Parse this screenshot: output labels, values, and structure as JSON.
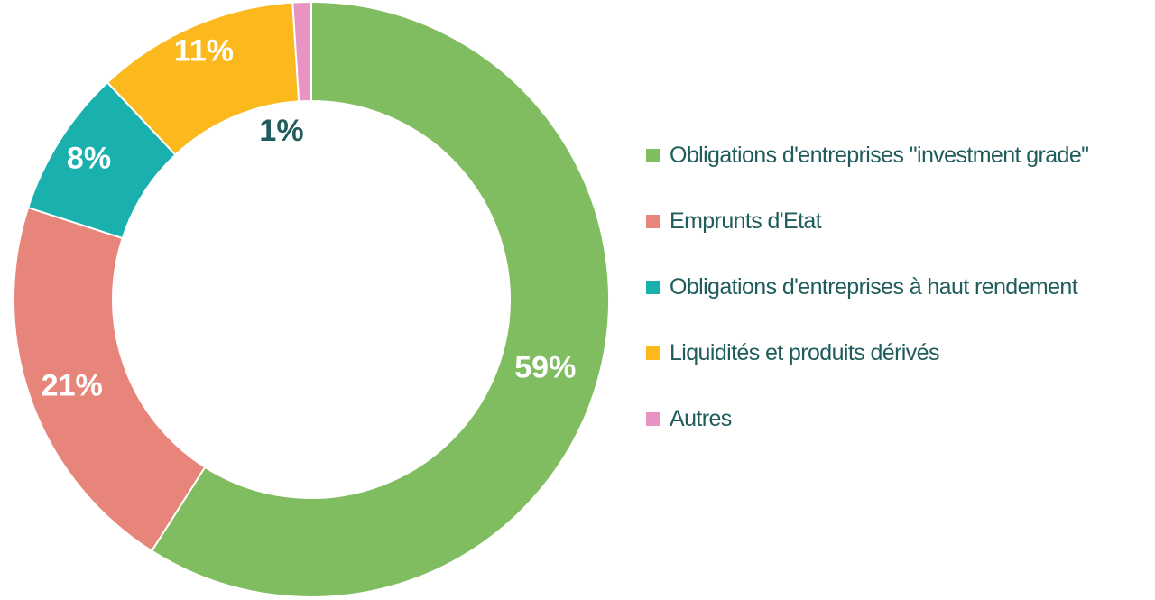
{
  "chart_data": {
    "type": "pie",
    "variant": "donut",
    "title": "",
    "legend_position": "right",
    "slices": [
      {
        "label": "Obligations d'entreprises \"investment grade\"",
        "value": 59,
        "display": "59%",
        "color": "#7fbd60",
        "label_color": "#ffffff"
      },
      {
        "label": "Emprunts d'Etat",
        "value": 21,
        "display": "21%",
        "color": "#e8857a",
        "label_color": "#ffffff"
      },
      {
        "label": "Obligations d'entreprises à haut rendement",
        "value": 8,
        "display": "8%",
        "color": "#19b0ad",
        "label_color": "#ffffff"
      },
      {
        "label": "Liquidités et produits dérivés",
        "value": 11,
        "display": "11%",
        "color": "#fbb91e",
        "label_color": "#ffffff"
      },
      {
        "label": "Autres",
        "value": 1,
        "display": "1%",
        "color": "#e993c2",
        "label_color": "#1f5c5b"
      }
    ]
  },
  "colors": {
    "legend_text": "#1f5c5b",
    "slice_border": "#ffffff"
  }
}
